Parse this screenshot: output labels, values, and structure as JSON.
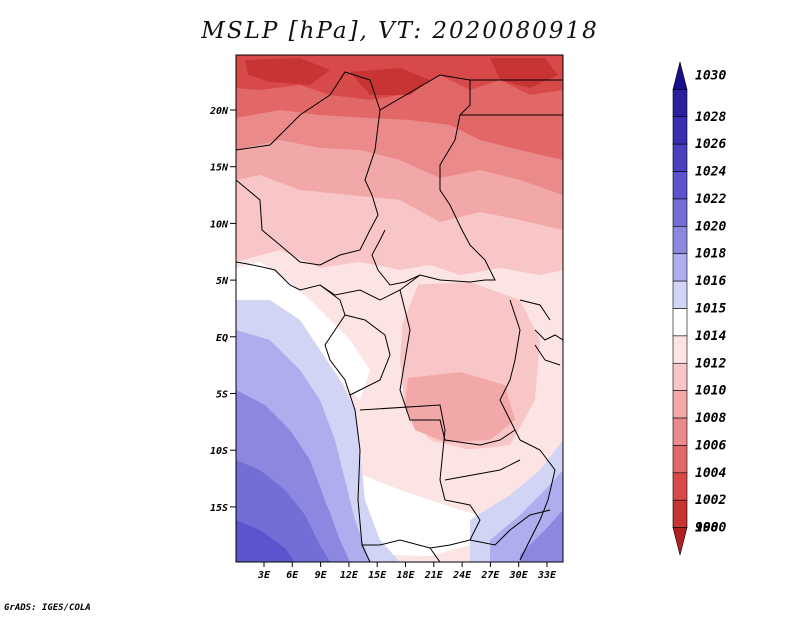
{
  "title": "MSLP [hPa], VT: 2020080918",
  "credit": "GrADS: IGES/COLA",
  "map": {
    "lat_labels": [
      "20N",
      "15N",
      "10N",
      "5N",
      "EQ",
      "5S",
      "10S",
      "15S"
    ],
    "lon_labels": [
      "3E",
      "6E",
      "9E",
      "12E",
      "15E",
      "18E",
      "21E",
      "24E",
      "27E",
      "30E",
      "33E"
    ]
  },
  "legend": {
    "levels": [
      {
        "value": "1030",
        "color": "#1a0f8c"
      },
      {
        "value": "1028",
        "color": "#2a1f9e"
      },
      {
        "value": "1026",
        "color": "#3a2fb0"
      },
      {
        "value": "1024",
        "color": "#4a40c0"
      },
      {
        "value": "1022",
        "color": "#5c54cc"
      },
      {
        "value": "1020",
        "color": "#736ed6"
      },
      {
        "value": "1018",
        "color": "#8c88e0"
      },
      {
        "value": "1016",
        "color": "#aeaeee"
      },
      {
        "value": "1015",
        "color": "#d2d4f6"
      },
      {
        "value": "1014",
        "color": "#ffffff"
      },
      {
        "value": "1012",
        "color": "#fde4e4"
      },
      {
        "value": "1010",
        "color": "#f8c6c6"
      },
      {
        "value": "1008",
        "color": "#f2a8a8"
      },
      {
        "value": "1006",
        "color": "#ea8a8a"
      },
      {
        "value": "1004",
        "color": "#e26868"
      },
      {
        "value": "1002",
        "color": "#d84a4a"
      },
      {
        "value": "1000",
        "color": "#c83434"
      },
      {
        "value": "998",
        "color": "#b02020"
      }
    ]
  }
}
